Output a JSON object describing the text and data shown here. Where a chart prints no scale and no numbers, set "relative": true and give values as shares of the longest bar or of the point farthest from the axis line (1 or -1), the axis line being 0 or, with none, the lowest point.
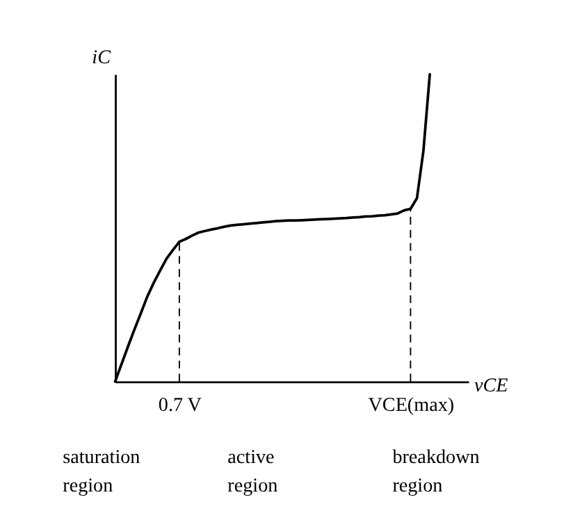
{
  "chart_data": {
    "type": "line",
    "relative": true,
    "xlabel": "vCE",
    "ylabel": "iC",
    "categories": [
      null,
      null,
      null,
      null,
      null,
      null,
      null,
      null,
      null,
      null,
      "0.7 V",
      null,
      null,
      null,
      null,
      null,
      null,
      null,
      null,
      null,
      null,
      null,
      null,
      null,
      null,
      null,
      null,
      null,
      null,
      null,
      null,
      null,
      null,
      null,
      null,
      null,
      null,
      null,
      null,
      null,
      null,
      null,
      null,
      null,
      null,
      null,
      "VCE(max)",
      null,
      null,
      null,
      null,
      null,
      null,
      null,
      null,
      null
    ],
    "series": [
      {
        "color": "#000000",
        "values": [
          0,
          0.057,
          0.114,
          0.169,
          0.222,
          0.276,
          0.321,
          0.361,
          0.4,
          0.428,
          0.455,
          0.464,
          0.475,
          0.485,
          0.49,
          0.495,
          0.499,
          0.504,
          0.508,
          0.51,
          0.512,
          0.514,
          0.516,
          0.518,
          0.52,
          0.522,
          0.523,
          0.524,
          0.524,
          0.525,
          0.526,
          0.527,
          0.528,
          0.529,
          0.53,
          0.531,
          0.532,
          0.534,
          0.535,
          0.537,
          0.538,
          0.54,
          0.541,
          0.544,
          0.547,
          0.557,
          0.562,
          0.597,
          0.75,
          1.0,
          null,
          null,
          null,
          null,
          null,
          null
        ]
      }
    ],
    "ref_lines": [
      {
        "axis": "x",
        "value": "0.7 V",
        "line_style": "dashed",
        "color": "#000000"
      },
      {
        "axis": "x",
        "value": "VCE(max)",
        "line_style": "dashed",
        "color": "#000000"
      }
    ],
    "annotations": [
      "saturation region",
      "active region",
      "breakdown region"
    ],
    "grid": false,
    "marker": "none",
    "line_style": "solid"
  }
}
